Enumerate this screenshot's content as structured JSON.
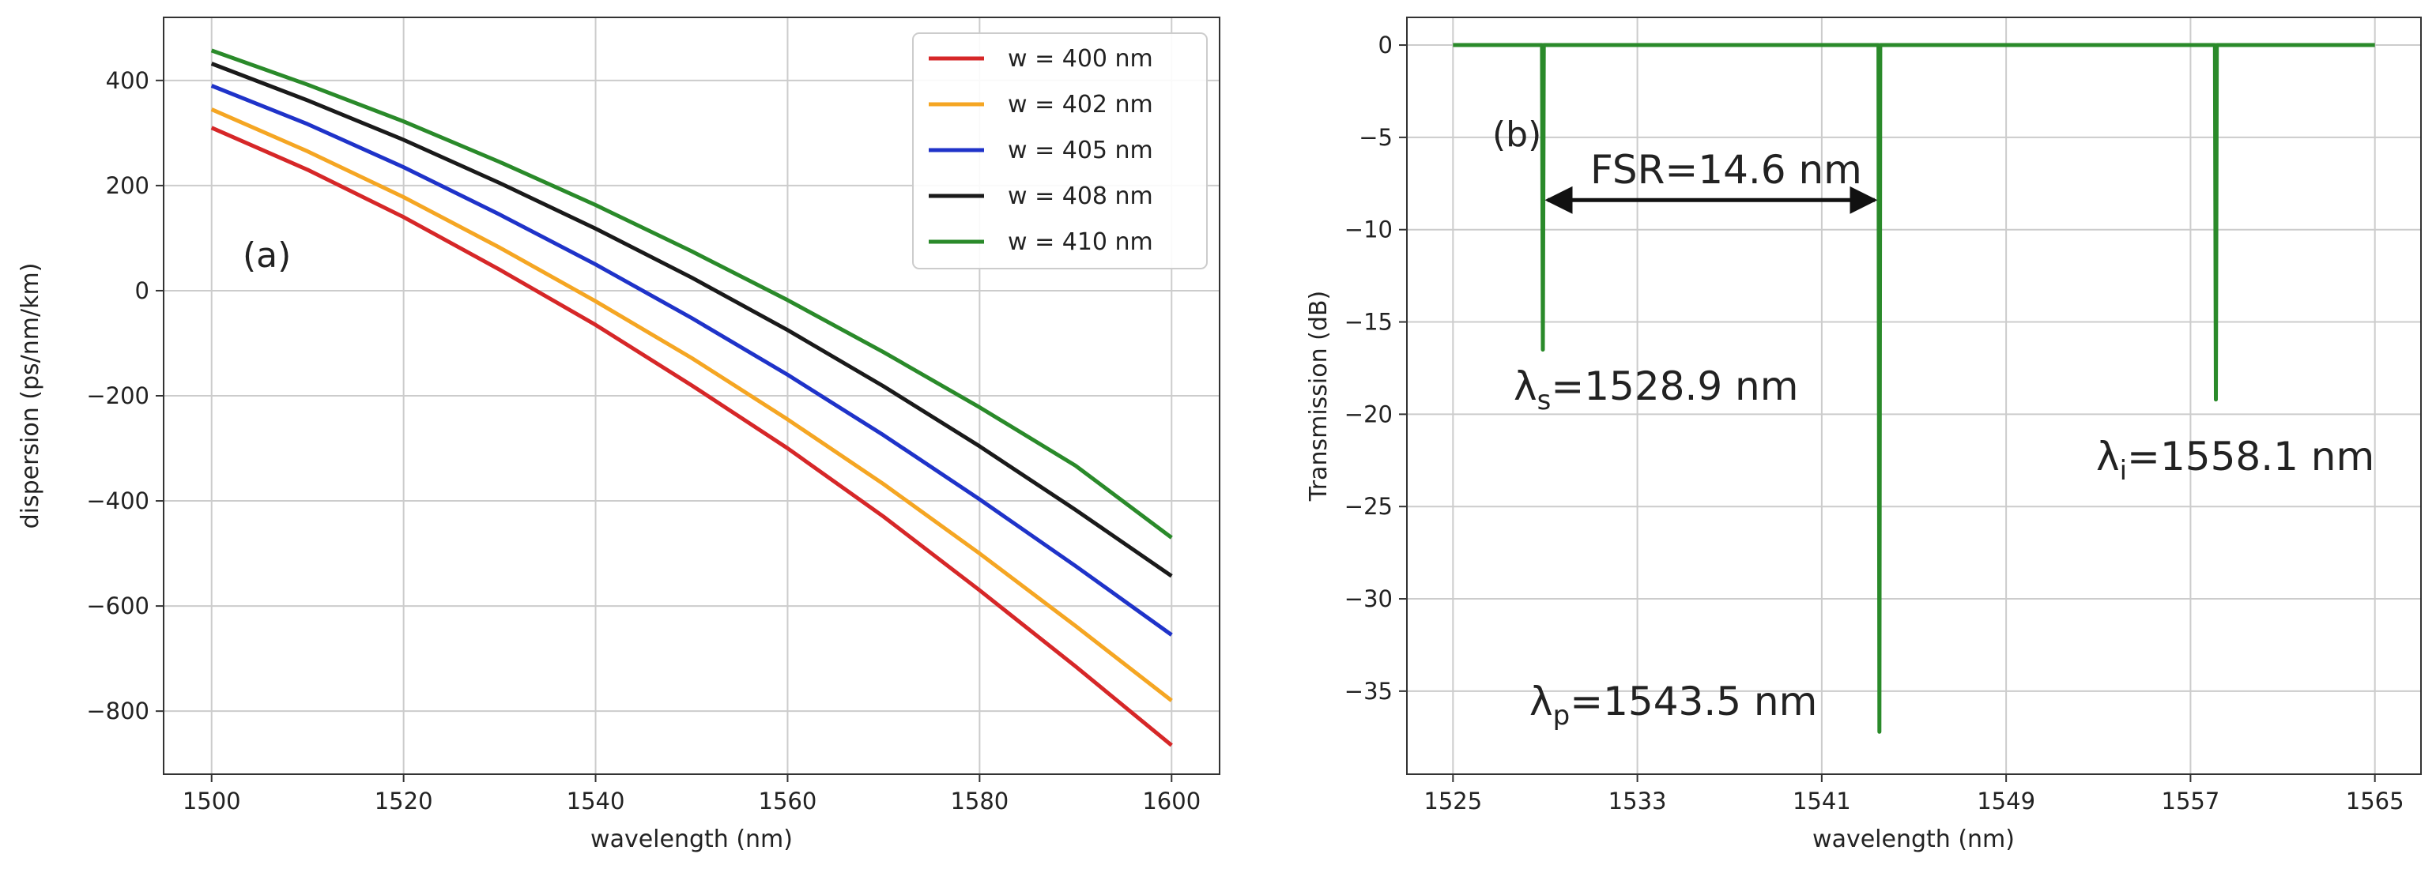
{
  "chart_data": [
    {
      "type": "line",
      "panel_label": "(a)",
      "title": "",
      "xlabel": "wavelength (nm)",
      "ylabel": "dispersion (ps/nm/km)",
      "xlim": [
        1495,
        1605
      ],
      "ylim": [
        -920,
        520
      ],
      "xticks": [
        1500,
        1520,
        1540,
        1560,
        1580,
        1600
      ],
      "yticks": [
        400,
        200,
        0,
        -200,
        -400,
        -600,
        -800
      ],
      "ytick_labels": [
        "400",
        "200",
        "0",
        "−200",
        "−400",
        "−600",
        "−800"
      ],
      "grid": true,
      "legend_position": "top-right",
      "x": [
        1500,
        1510,
        1520,
        1530,
        1540,
        1550,
        1560,
        1570,
        1580,
        1590,
        1600
      ],
      "series": [
        {
          "name": "w = 400 nm",
          "color": "#d62728",
          "values": [
            310,
            230,
            140,
            40,
            -65,
            -180,
            -300,
            -430,
            -570,
            -715,
            -865
          ]
        },
        {
          "name": "w = 402 nm",
          "color": "#f5a623",
          "values": [
            345,
            265,
            178,
            82,
            -20,
            -128,
            -245,
            -368,
            -500,
            -638,
            -780
          ]
        },
        {
          "name": "w = 405 nm",
          "color": "#1f33c9",
          "values": [
            390,
            317,
            235,
            145,
            50,
            -52,
            -160,
            -275,
            -397,
            -524,
            -655
          ]
        },
        {
          "name": "w = 408 nm",
          "color": "#1a1a1a",
          "values": [
            432,
            362,
            287,
            205,
            118,
            25,
            -75,
            -182,
            -296,
            -417,
            -543
          ]
        },
        {
          "name": "w = 410 nm",
          "color": "#2a8a2a",
          "values": [
            457,
            392,
            322,
            245,
            163,
            75,
            -18,
            -117,
            -222,
            -333,
            -470
          ]
        }
      ]
    },
    {
      "type": "line",
      "panel_label": "(b)",
      "title": "",
      "xlabel": "wavelength (nm)",
      "ylabel": "Transmission (dB)",
      "xlim": [
        1523,
        1567
      ],
      "ylim": [
        -39.5,
        1.5
      ],
      "xticks": [
        1525,
        1533,
        1541,
        1549,
        1557,
        1565
      ],
      "yticks": [
        0,
        -5,
        -10,
        -15,
        -20,
        -25,
        -30,
        -35
      ],
      "ytick_labels": [
        "0",
        "−5",
        "−10",
        "−15",
        "−20",
        "−25",
        "−30",
        "−35"
      ],
      "grid": true,
      "color": "#2a8a2a",
      "range": [
        1525,
        1565
      ],
      "resonances": [
        {
          "center": 1528.9,
          "depth": -16.5
        },
        {
          "center": 1543.5,
          "depth": -37.2
        },
        {
          "center": 1558.1,
          "depth": -19.2
        }
      ],
      "annotations": {
        "fsr": "FSR=14.6 nm",
        "fsr_from": 1528.9,
        "fsr_to": 1543.5,
        "fsr_y": -8.4,
        "signal_main": "λ",
        "signal_sub": "s",
        "signal_value": "=1528.9 nm",
        "pump_main": "λ",
        "pump_sub": "p",
        "pump_value": "=1543.5 nm",
        "idler_main": "λ",
        "idler_sub": "i",
        "idler_value": "=1558.1 nm"
      }
    }
  ]
}
